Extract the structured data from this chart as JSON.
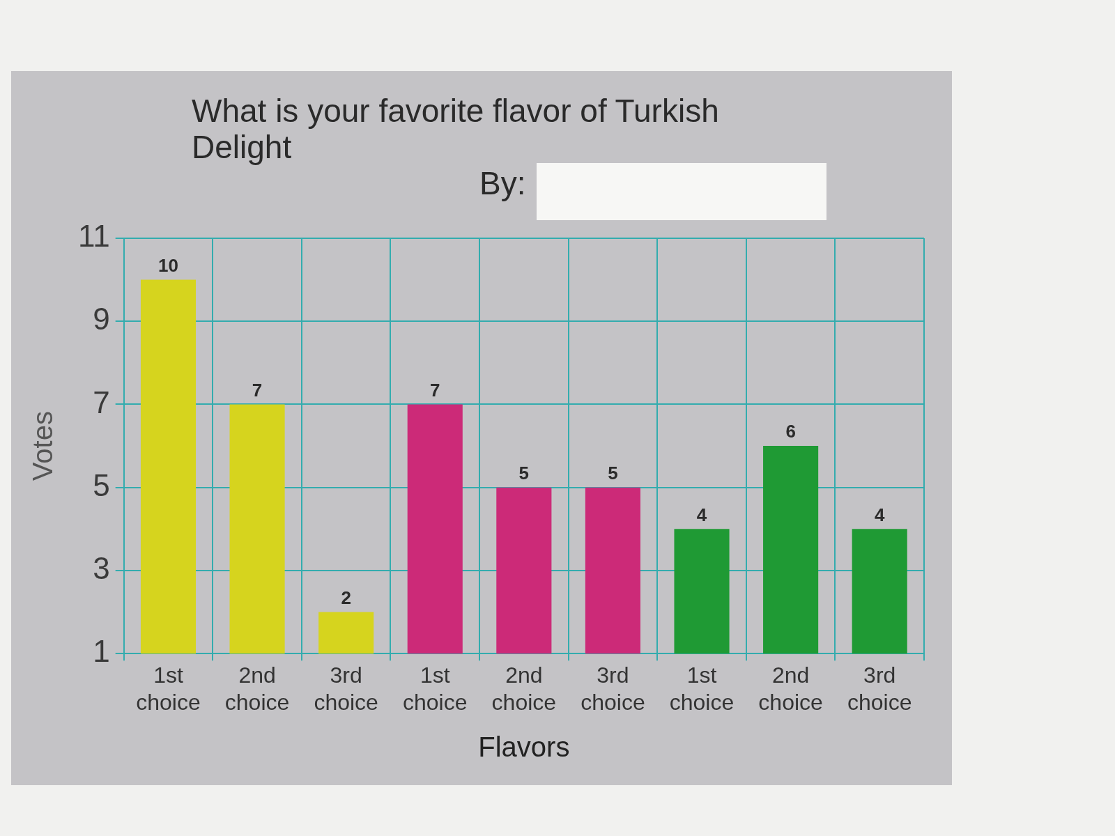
{
  "chart_data": {
    "type": "bar",
    "title": "What is your favorite flavor of Turkish Delight",
    "xlabel": "Flavors",
    "ylabel": "Votes",
    "annotations": [
      "By:"
    ],
    "categories": [
      "1st choice",
      "2nd choice",
      "3rd choice",
      "1st choice",
      "2nd choice",
      "3rd choice",
      "1st choice",
      "2nd choice",
      "3rd choice"
    ],
    "values": [
      10,
      7,
      2,
      7,
      5,
      5,
      4,
      6,
      4
    ],
    "colors": [
      "#d6d41e",
      "#d6d41e",
      "#d6d41e",
      "#cc2a78",
      "#cc2a78",
      "#cc2a78",
      "#1f9a34",
      "#1f9a34",
      "#1f9a34"
    ],
    "ylim": [
      1,
      11
    ],
    "yticks": [
      1,
      3,
      5,
      7,
      9,
      11
    ],
    "grid": true,
    "legend": false,
    "data_labels": true
  }
}
